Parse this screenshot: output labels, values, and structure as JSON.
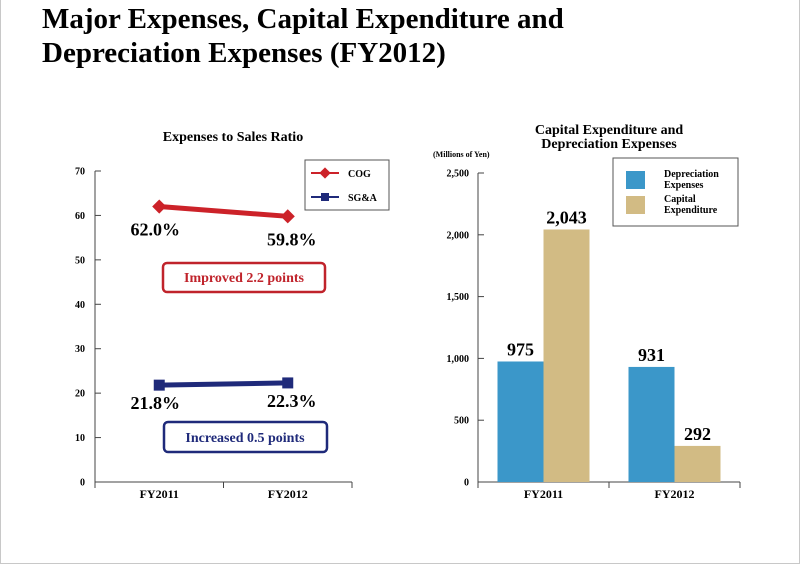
{
  "page": {
    "title_line1": "Major Expenses, Capital Expenditure and",
    "title_line2": "Depreciation Expenses (FY2012)"
  },
  "chart_data": [
    {
      "type": "line",
      "title": "Expenses to Sales Ratio",
      "categories": [
        "FY2011",
        "FY2012"
      ],
      "ylim": [
        0,
        70
      ],
      "yticks": [
        "0",
        "10",
        "20",
        "30",
        "40",
        "50",
        "60",
        "70"
      ],
      "series": [
        {
          "name": "COG",
          "color": "#cc2229",
          "values": [
            62.0,
            59.8
          ],
          "labels": [
            "62.0%",
            "59.8%"
          ]
        },
        {
          "name": "SG&A",
          "color": "#1f2a7a",
          "values": [
            21.8,
            22.3
          ],
          "labels": [
            "21.8%",
            "22.3%"
          ]
        }
      ],
      "annotations": [
        {
          "text": "Improved 2.2 points",
          "color": "#c0232b"
        },
        {
          "text": "Increased 0.5 points",
          "color": "#1f2a7a"
        }
      ],
      "legend_position": "top-right"
    },
    {
      "type": "bar",
      "title_line1": "Capital Expenditure and",
      "title_line2": "Depreciation Expenses",
      "unit": "(Millions of Yen)",
      "categories": [
        "FY2011",
        "FY2012"
      ],
      "ylim": [
        0,
        2500
      ],
      "yticks": [
        "0",
        "500",
        "1,000",
        "1,500",
        "2,000",
        "2,500"
      ],
      "series": [
        {
          "name_line1": "Depreciation",
          "name_line2": "Expenses",
          "color": "#3b97c9",
          "values": [
            975,
            931
          ],
          "labels": [
            "975",
            "931"
          ]
        },
        {
          "name_line1": "Capital",
          "name_line2": "Expenditure",
          "color": "#d2bb84",
          "values": [
            2043,
            292
          ],
          "labels": [
            "2,043",
            "292"
          ]
        }
      ],
      "legend_position": "top-right"
    }
  ]
}
